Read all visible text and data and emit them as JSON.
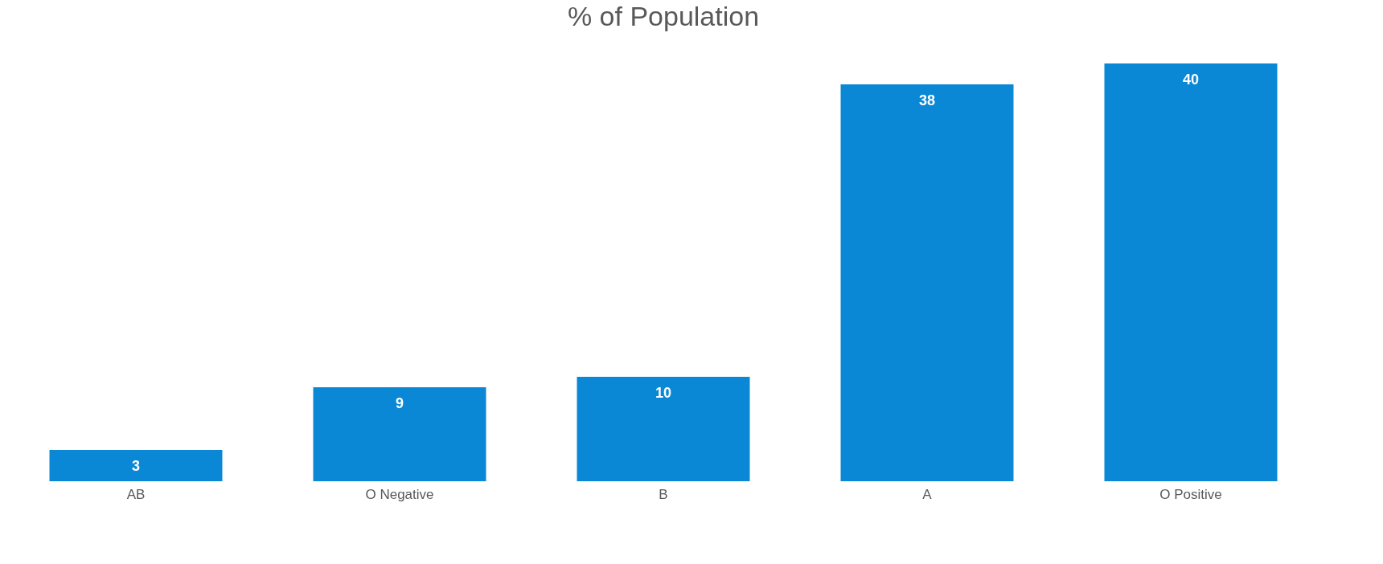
{
  "chart_data": {
    "type": "bar",
    "title": "% of Population",
    "categories": [
      "AB",
      "O Negative",
      "B",
      "A",
      "O Positive"
    ],
    "values": [
      3,
      9,
      10,
      38,
      40
    ],
    "color": "#0a88d6",
    "data_labels": true,
    "grid": false,
    "tick_labels": "x"
  }
}
